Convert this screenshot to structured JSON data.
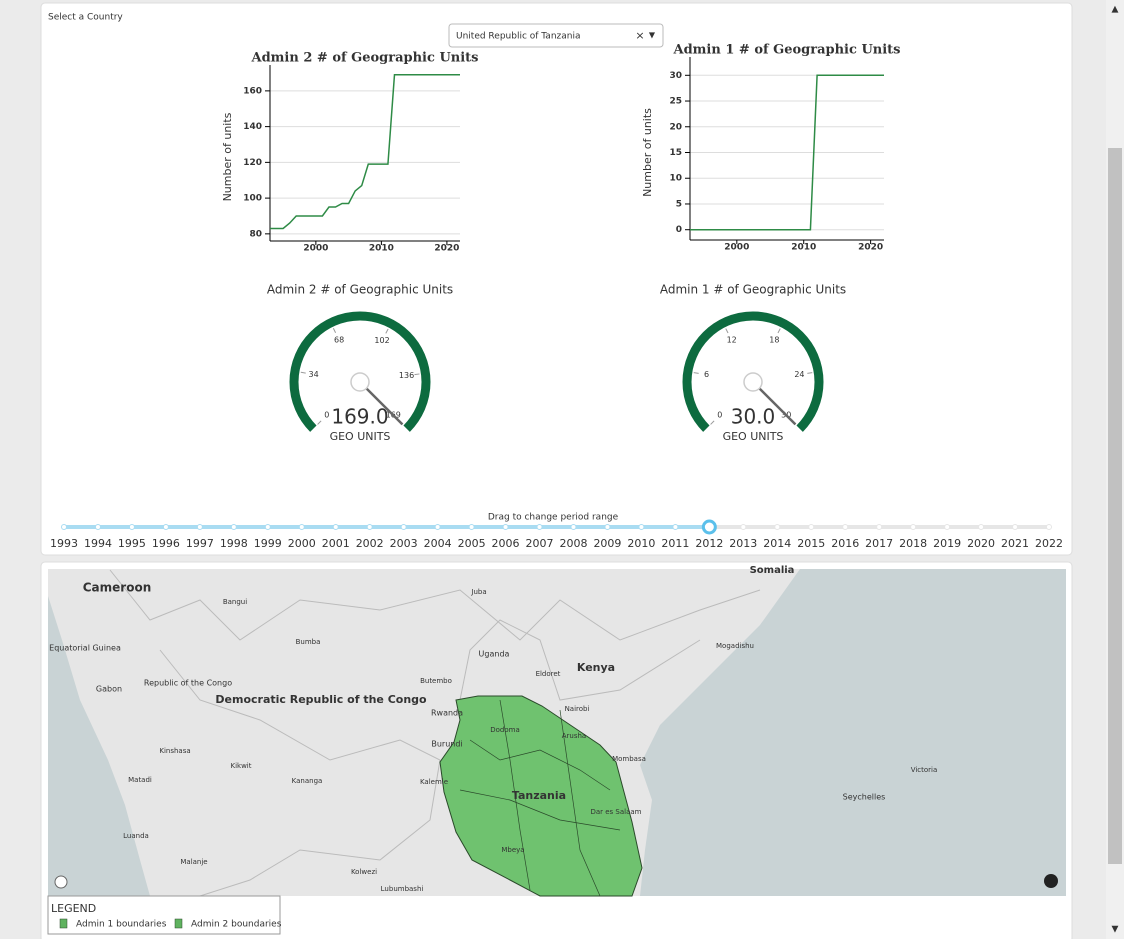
{
  "selector": {
    "label": "Select a Country",
    "value": "United Republic of Tanzania"
  },
  "chart_data": [
    {
      "type": "line",
      "title": "Admin 2 # of Geographic Units",
      "y_label": "Number of units",
      "x": [
        1993,
        1994,
        1995,
        1996,
        1997,
        1998,
        1999,
        2000,
        2001,
        2002,
        2003,
        2004,
        2005,
        2006,
        2007,
        2008,
        2009,
        2010,
        2011,
        2012,
        2013,
        2014,
        2015,
        2016,
        2017,
        2018,
        2019,
        2020,
        2021,
        2022
      ],
      "values": [
        83,
        83,
        83,
        86,
        90,
        90,
        90,
        90,
        90,
        95,
        95,
        97,
        97,
        104,
        107,
        119,
        119,
        119,
        119,
        169,
        169,
        169,
        169,
        169,
        169,
        169,
        169,
        169,
        169,
        169
      ],
      "color": "#2e8b46",
      "xlim": [
        1993,
        2022
      ],
      "ylim": [
        76,
        170
      ],
      "xticks": [
        2000,
        2010,
        2020
      ],
      "yticks": [
        80,
        100,
        120,
        140,
        160
      ],
      "grid": true
    },
    {
      "type": "line",
      "title": "Admin 1 # of Geographic Units",
      "y_label": "Number of units",
      "x": [
        1993,
        1994,
        1995,
        1996,
        1997,
        1998,
        1999,
        2000,
        2001,
        2002,
        2003,
        2004,
        2005,
        2006,
        2007,
        2008,
        2009,
        2010,
        2011,
        2012,
        2013,
        2014,
        2015,
        2016,
        2017,
        2018,
        2019,
        2020,
        2021,
        2022
      ],
      "values": [
        0,
        0,
        0,
        0,
        0,
        0,
        0,
        0,
        0,
        0,
        0,
        0,
        0,
        0,
        0,
        0,
        0,
        0,
        0,
        30,
        30,
        30,
        30,
        30,
        30,
        30,
        30,
        30,
        30,
        30
      ],
      "color": "#2e8b46",
      "xlim": [
        1993,
        2022
      ],
      "ylim": [
        -2,
        32
      ],
      "xticks": [
        2000,
        2010,
        2020
      ],
      "yticks": [
        0,
        5,
        10,
        15,
        20,
        25,
        30
      ],
      "grid": true
    },
    {
      "type": "gauge",
      "title": "Admin 2 # of Geographic Units",
      "value": 169,
      "value_label": "169.0",
      "unit": "GEO UNITS",
      "range": [
        0,
        169
      ],
      "ticks": [
        0,
        34,
        68,
        102,
        136,
        169
      ],
      "color": "#0d6b3f"
    },
    {
      "type": "gauge",
      "title": "Admin 1 # of Geographic Units",
      "value": 30,
      "value_label": "30.0",
      "unit": "GEO UNITS",
      "range": [
        0,
        30
      ],
      "ticks": [
        0,
        6,
        12,
        18,
        24,
        30
      ],
      "color": "#0d6b3f"
    }
  ],
  "slider": {
    "title": "Drag to change period range",
    "marks": [
      1993,
      1994,
      1995,
      1996,
      1997,
      1998,
      1999,
      2000,
      2001,
      2002,
      2003,
      2004,
      2005,
      2006,
      2007,
      2008,
      2009,
      2010,
      2011,
      2012,
      2013,
      2014,
      2015,
      2016,
      2017,
      2018,
      2019,
      2020,
      2021,
      2022
    ],
    "selected": 2012
  },
  "map": {
    "labels": [
      "Cameroon",
      "Equatorial Guinea",
      "Gabon",
      "Republic of the Congo",
      "Democratic Republic of the Congo",
      "Uganda",
      "Kenya",
      "Rwanda",
      "Burundi",
      "Tanzania",
      "Somalia",
      "Seychelles",
      "Bangui",
      "Juba",
      "Bumba",
      "Eldoret",
      "Butembo",
      "Nairobi",
      "Mombasa",
      "Kinshasa",
      "Kikwit",
      "Kananga",
      "Kalemie",
      "Matadi",
      "Luanda",
      "Malanje",
      "Kolwezi",
      "Lubumbashi",
      "Victoria",
      "Mogadishu",
      "Dodoma",
      "Arusha",
      "Dar es Salaam",
      "Mbeya"
    ],
    "legend": {
      "title": "LEGEND",
      "items": [
        "Admin 1 boundaries",
        "Admin 2 boundaries"
      ]
    }
  }
}
